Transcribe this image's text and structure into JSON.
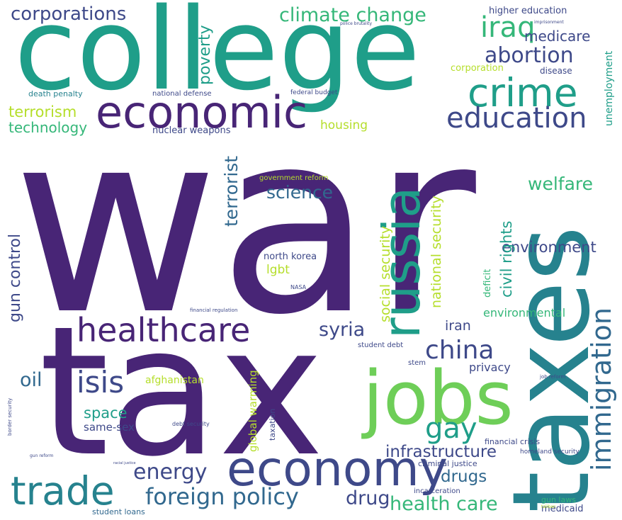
{
  "palette": {
    "purple": "#482576",
    "indigo": "#3e4989",
    "blue": "#31688e",
    "teal": "#26828e",
    "green": "#1f9e89",
    "seagreen": "#35b779",
    "lime": "#6ece58",
    "yellow": "#b5de2b"
  },
  "words": [
    {
      "id": "war",
      "text": "war",
      "color": "purple"
    },
    {
      "id": "tax",
      "text": "tax",
      "color": "purple"
    },
    {
      "id": "college",
      "text": "college",
      "color": "green"
    },
    {
      "id": "taxes",
      "text": "taxes",
      "color": "teal"
    },
    {
      "id": "jobs",
      "text": "jobs",
      "color": "lime"
    },
    {
      "id": "economy",
      "text": "economy",
      "color": "indigo"
    },
    {
      "id": "economic",
      "text": "economic",
      "color": "purple"
    },
    {
      "id": "russia",
      "text": "russia",
      "color": "green"
    },
    {
      "id": "crime",
      "text": "crime",
      "color": "green"
    },
    {
      "id": "education",
      "text": "education",
      "color": "indigo"
    },
    {
      "id": "healthcare",
      "text": "healthcare",
      "color": "purple"
    },
    {
      "id": "trade",
      "text": "trade",
      "color": "teal"
    },
    {
      "id": "immigration",
      "text": "immigration",
      "color": "blue"
    },
    {
      "id": "china",
      "text": "china",
      "color": "indigo"
    },
    {
      "id": "isis",
      "text": "isis",
      "color": "indigo"
    },
    {
      "id": "gay",
      "text": "gay",
      "color": "green"
    },
    {
      "id": "iraq",
      "text": "iraq",
      "color": "seagreen"
    },
    {
      "id": "foreign-policy",
      "text": "foreign policy",
      "color": "blue"
    },
    {
      "id": "energy",
      "text": "energy",
      "color": "indigo"
    },
    {
      "id": "abortion",
      "text": "abortion",
      "color": "indigo"
    },
    {
      "id": "corporations",
      "text": "corporations",
      "color": "indigo"
    },
    {
      "id": "climate-change",
      "text": "climate change",
      "color": "seagreen"
    },
    {
      "id": "health-care",
      "text": "health care",
      "color": "seagreen"
    },
    {
      "id": "syria",
      "text": "syria",
      "color": "indigo"
    },
    {
      "id": "science",
      "text": "science",
      "color": "blue"
    },
    {
      "id": "welfare",
      "text": "welfare",
      "color": "seagreen"
    },
    {
      "id": "terrorist",
      "text": "terrorist",
      "color": "blue"
    },
    {
      "id": "oil",
      "text": "oil",
      "color": "blue"
    },
    {
      "id": "drug",
      "text": "drug",
      "color": "indigo"
    },
    {
      "id": "drugs",
      "text": "drugs",
      "color": "blue"
    },
    {
      "id": "infrastructure",
      "text": "infrastructure",
      "color": "indigo"
    },
    {
      "id": "environment",
      "text": "environment",
      "color": "indigo"
    },
    {
      "id": "space",
      "text": "space",
      "color": "green"
    },
    {
      "id": "terrorism",
      "text": "terrorism",
      "color": "yellow"
    },
    {
      "id": "technology",
      "text": "technology",
      "color": "seagreen"
    },
    {
      "id": "poverty",
      "text": "poverty",
      "color": "green"
    },
    {
      "id": "medicare",
      "text": "medicare",
      "color": "indigo"
    },
    {
      "id": "housing",
      "text": "housing",
      "color": "yellow"
    },
    {
      "id": "national-security",
      "text": "national security",
      "color": "yellow"
    },
    {
      "id": "social-security",
      "text": "social security",
      "color": "yellow"
    },
    {
      "id": "civil-rights",
      "text": "civil rights",
      "color": "green"
    },
    {
      "id": "gun-control",
      "text": "gun control",
      "color": "indigo"
    },
    {
      "id": "lgbt",
      "text": "lgbt",
      "color": "yellow"
    },
    {
      "id": "iran",
      "text": "iran",
      "color": "indigo"
    },
    {
      "id": "privacy",
      "text": "privacy",
      "color": "indigo"
    },
    {
      "id": "environmental",
      "text": "environmental",
      "color": "seagreen"
    },
    {
      "id": "global-warming",
      "text": "global warming",
      "color": "yellow"
    },
    {
      "id": "same-sex",
      "text": "same-sex",
      "color": "indigo"
    },
    {
      "id": "afghanistan",
      "text": "afghanistan",
      "color": "yellow"
    },
    {
      "id": "unemployment",
      "text": "unemployment",
      "color": "green"
    },
    {
      "id": "deficit",
      "text": "deficit",
      "color": "seagreen"
    },
    {
      "id": "nuclear-weapons",
      "text": "nuclear weapons",
      "color": "indigo"
    },
    {
      "id": "death-penalty",
      "text": "death penalty",
      "color": "teal"
    },
    {
      "id": "higher-education",
      "text": "higher education",
      "color": "indigo"
    },
    {
      "id": "corporation",
      "text": "corporation",
      "color": "yellow"
    },
    {
      "id": "disease",
      "text": "disease",
      "color": "indigo"
    },
    {
      "id": "north-korea",
      "text": "north korea",
      "color": "indigo"
    },
    {
      "id": "government-reform",
      "text": "government reform",
      "color": "yellow"
    },
    {
      "id": "national-defense",
      "text": "national defense",
      "color": "indigo"
    },
    {
      "id": "federal-budget",
      "text": "federal budget",
      "color": "indigo"
    },
    {
      "id": "student-debt",
      "text": "student debt",
      "color": "indigo"
    },
    {
      "id": "stem",
      "text": "stem",
      "color": "indigo"
    },
    {
      "id": "taxation",
      "text": "taxation",
      "color": "indigo"
    },
    {
      "id": "criminal-justice",
      "text": "criminal justice",
      "color": "indigo"
    },
    {
      "id": "financial-crisis",
      "text": "financial crisis",
      "color": "indigo"
    },
    {
      "id": "homeland-security",
      "text": "homeland security",
      "color": "indigo"
    },
    {
      "id": "gun-laws",
      "text": "gun laws",
      "color": "seagreen"
    },
    {
      "id": "medicaid",
      "text": "medicaid",
      "color": "indigo"
    },
    {
      "id": "incarceration",
      "text": "incarceration",
      "color": "indigo"
    },
    {
      "id": "student-loans",
      "text": "student loans",
      "color": "blue"
    },
    {
      "id": "nasa",
      "text": "NASA",
      "color": "indigo"
    },
    {
      "id": "financial-regulation",
      "text": "financial regulation",
      "color": "indigo"
    },
    {
      "id": "police-brutality",
      "text": "police brutality",
      "color": "indigo"
    },
    {
      "id": "imprisonment",
      "text": "imprisonment",
      "color": "indigo"
    },
    {
      "id": "job-reform",
      "text": "job reform",
      "color": "indigo"
    },
    {
      "id": "border-security",
      "text": "border security",
      "color": "indigo"
    },
    {
      "id": "debt-security",
      "text": "debt security",
      "color": "indigo"
    },
    {
      "id": "gun-reform",
      "text": "gun reform",
      "color": "indigo"
    },
    {
      "id": "racial-justice",
      "text": "racial justice",
      "color": "indigo"
    },
    {
      "id": "taliban",
      "text": "taliban",
      "color": "yellow"
    }
  ]
}
